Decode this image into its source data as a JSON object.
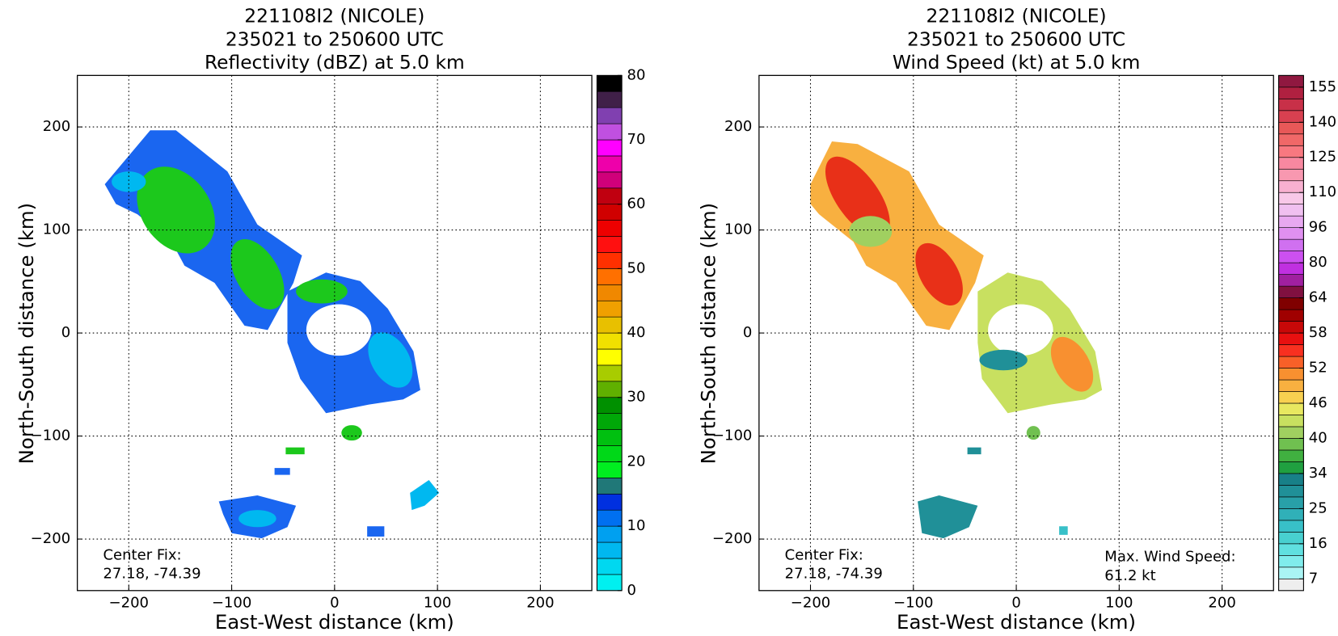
{
  "chart_data": [
    {
      "type": "radar-map",
      "title": [
        "221108I2 (NICOLE)",
        "235021 to 250600 UTC",
        "Reflectivity (dBZ) at 5.0 km"
      ],
      "xlabel": "East-West distance (km)",
      "ylabel": "North-South distance (km)",
      "xlim": [
        -250,
        250
      ],
      "ylim": [
        -250,
        250
      ],
      "xticks": [
        {
          "value": -200,
          "label": "−200"
        },
        {
          "value": -100,
          "label": "−100"
        },
        0,
        100,
        200
      ],
      "yticks": [
        {
          "value": -200,
          "label": "−200"
        },
        {
          "value": -100,
          "label": "−100"
        },
        0,
        100,
        200
      ],
      "grid": true,
      "colorbar": {
        "bounds": [
          0,
          2.5,
          5,
          7.5,
          10,
          12.5,
          15,
          17.5,
          20,
          22.5,
          25,
          27.5,
          30,
          32.5,
          35,
          37.5,
          40,
          42.5,
          45,
          47.5,
          50,
          52.5,
          55,
          57.5,
          60,
          62.5,
          65,
          67.5,
          70,
          72.5,
          75,
          77.5,
          80
        ],
        "colors": [
          "#00f0f0",
          "#00d8f0",
          "#00b8f0",
          "#00a0f0",
          "#0070f0",
          "#0030e0",
          "#207878",
          "#00ee20",
          "#00d818",
          "#00c010",
          "#00a808",
          "#009000",
          "#60b000",
          "#a8cc00",
          "#ffff00",
          "#f0e000",
          "#e8c000",
          "#f0a000",
          "#f08800",
          "#ff7000",
          "#ff3000",
          "#ff1010",
          "#ee0000",
          "#d00000",
          "#c00010",
          "#d0007a",
          "#ee00aa",
          "#ff00ff",
          "#c050e0",
          "#8040b0",
          "#402048",
          "#000000"
        ],
        "ticks": [
          0,
          10,
          20,
          30,
          40,
          50,
          60,
          70,
          80
        ]
      },
      "annotations": [
        {
          "position": "lower left",
          "text": [
            "Center Fix:",
            "27.18, -74.39"
          ]
        }
      ]
    },
    {
      "type": "radar-map",
      "title": [
        "221108I2 (NICOLE)",
        "235021 to 250600 UTC",
        "Wind Speed (kt) at 5.0 km"
      ],
      "xlabel": "East-West distance (km)",
      "ylabel": "North-South distance (km)",
      "xlim": [
        -250,
        250
      ],
      "ylim": [
        -250,
        250
      ],
      "xticks": [
        {
          "value": -200,
          "label": "−200"
        },
        {
          "value": -100,
          "label": "−100"
        },
        0,
        100,
        200
      ],
      "yticks": [
        {
          "value": -200,
          "label": "−200"
        },
        {
          "value": -100,
          "label": "−100"
        },
        0,
        100,
        200
      ],
      "grid": true,
      "colorbar": {
        "bounds": [
          4,
          7,
          10,
          13,
          16,
          19,
          22,
          25,
          28,
          31,
          34,
          36,
          38,
          40,
          42,
          44,
          46,
          48,
          50,
          52,
          54,
          56,
          58,
          60,
          62,
          64,
          69,
          75,
          80,
          85,
          90,
          96,
          101,
          105,
          110,
          115,
          120,
          125,
          130,
          135,
          140,
          145,
          150,
          155,
          160
        ],
        "colors": [
          "#eeeeee",
          "#aaf4f4",
          "#80ecec",
          "#60e0e0",
          "#48d0d0",
          "#38c0c8",
          "#30b0b8",
          "#28a0a8",
          "#209098",
          "#188088",
          "#20a040",
          "#40b040",
          "#70c050",
          "#a0d060",
          "#c8e060",
          "#e8e860",
          "#f8d050",
          "#f8b040",
          "#f89030",
          "#f86028",
          "#f83020",
          "#e81010",
          "#c80808",
          "#a00000",
          "#800000",
          "#801040",
          "#a020a0",
          "#c030e0",
          "#cc50f0",
          "#d070f0",
          "#e090f0",
          "#e8a8f0",
          "#f0c0f0",
          "#f8c8e8",
          "#f8b0d0",
          "#f898b0",
          "#f888a0",
          "#f87880",
          "#f06868",
          "#e85858",
          "#d84050",
          "#c83048",
          "#b02040",
          "#901840"
        ],
        "ticks": [
          7,
          16,
          25,
          34,
          40,
          46,
          52,
          58,
          64,
          80,
          96,
          110,
          125,
          140,
          155
        ]
      },
      "annotations": [
        {
          "position": "lower left",
          "text": [
            "Center Fix:",
            "27.18, -74.39"
          ]
        },
        {
          "position": "lower right",
          "text": [
            "Max. Wind Speed:",
            "61.2 kt"
          ]
        }
      ]
    }
  ]
}
